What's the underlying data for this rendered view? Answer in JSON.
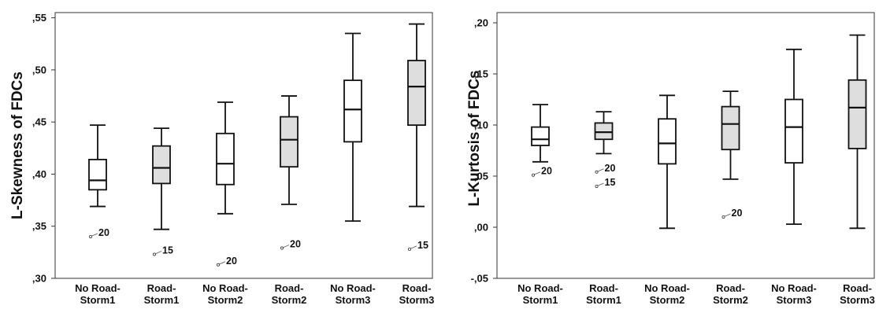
{
  "chart_data": [
    {
      "type": "box",
      "ylabel": "L-Skewness of FDCs",
      "ylim": [
        0.3,
        0.555
      ],
      "yticks": [
        0.3,
        0.35,
        0.4,
        0.45,
        0.5,
        0.55
      ],
      "ytick_labels": [
        ",30",
        ",35",
        ",40",
        ",45",
        ",50",
        ",55"
      ],
      "categories": [
        [
          "No Road-",
          "Storm1"
        ],
        [
          "Road-",
          "Storm1"
        ],
        [
          "No Road-",
          "Storm2"
        ],
        [
          "Road-",
          "Storm2"
        ],
        [
          "No Road-",
          "Storm3"
        ],
        [
          "Road-",
          "Storm3"
        ]
      ],
      "boxes": [
        {
          "min": 0.369,
          "q1": 0.385,
          "median": 0.394,
          "q3": 0.414,
          "max": 0.447,
          "fill": "#ffffff",
          "outliers": [
            {
              "value": 0.34,
              "label": "20"
            }
          ]
        },
        {
          "min": 0.347,
          "q1": 0.391,
          "median": 0.406,
          "q3": 0.427,
          "max": 0.444,
          "fill": "#dedede",
          "outliers": [
            {
              "value": 0.323,
              "label": "15"
            }
          ]
        },
        {
          "min": 0.362,
          "q1": 0.39,
          "median": 0.41,
          "q3": 0.439,
          "max": 0.469,
          "fill": "#ffffff",
          "outliers": [
            {
              "value": 0.313,
              "label": "20"
            }
          ]
        },
        {
          "min": 0.371,
          "q1": 0.407,
          "median": 0.433,
          "q3": 0.455,
          "max": 0.475,
          "fill": "#dedede",
          "outliers": [
            {
              "value": 0.329,
              "label": "20"
            }
          ]
        },
        {
          "min": 0.355,
          "q1": 0.431,
          "median": 0.462,
          "q3": 0.49,
          "max": 0.535,
          "fill": "#ffffff",
          "outliers": []
        },
        {
          "min": 0.369,
          "q1": 0.447,
          "median": 0.484,
          "q3": 0.509,
          "max": 0.544,
          "fill": "#dedede",
          "outliers": [
            {
              "value": 0.328,
              "label": "15"
            }
          ]
        }
      ]
    },
    {
      "type": "box",
      "ylabel": "L-Kurtosis of FDCs",
      "ylim": [
        -0.05,
        0.21
      ],
      "yticks": [
        -0.05,
        0.0,
        0.05,
        0.1,
        0.15,
        0.2
      ],
      "ytick_labels": [
        "-,05",
        ",00",
        ",05",
        ",10",
        ",15",
        ",20"
      ],
      "categories": [
        [
          "No Road-",
          "Storm1"
        ],
        [
          "Road-",
          "Storm1"
        ],
        [
          "No Road-",
          "Storm2"
        ],
        [
          "Road-",
          "Storm2"
        ],
        [
          "No Road-",
          "Storm3"
        ],
        [
          "Road-",
          "Storm3"
        ]
      ],
      "boxes": [
        {
          "min": 0.064,
          "q1": 0.08,
          "median": 0.086,
          "q3": 0.098,
          "max": 0.12,
          "fill": "#ffffff",
          "outliers": [
            {
              "value": 0.051,
              "label": "20"
            }
          ]
        },
        {
          "min": 0.072,
          "q1": 0.086,
          "median": 0.093,
          "q3": 0.102,
          "max": 0.113,
          "fill": "#dedede",
          "outliers": [
            {
              "value": 0.054,
              "label": "20"
            },
            {
              "value": 0.04,
              "label": "15"
            }
          ]
        },
        {
          "min": -0.001,
          "q1": 0.062,
          "median": 0.082,
          "q3": 0.106,
          "max": 0.129,
          "fill": "#ffffff",
          "outliers": []
        },
        {
          "min": 0.047,
          "q1": 0.076,
          "median": 0.101,
          "q3": 0.118,
          "max": 0.133,
          "fill": "#dedede",
          "outliers": [
            {
              "value": 0.01,
              "label": "20"
            }
          ]
        },
        {
          "min": 0.003,
          "q1": 0.063,
          "median": 0.098,
          "q3": 0.125,
          "max": 0.174,
          "fill": "#ffffff",
          "outliers": []
        },
        {
          "min": -0.001,
          "q1": 0.077,
          "median": 0.117,
          "q3": 0.144,
          "max": 0.188,
          "fill": "#dedede",
          "outliers": []
        }
      ]
    }
  ]
}
